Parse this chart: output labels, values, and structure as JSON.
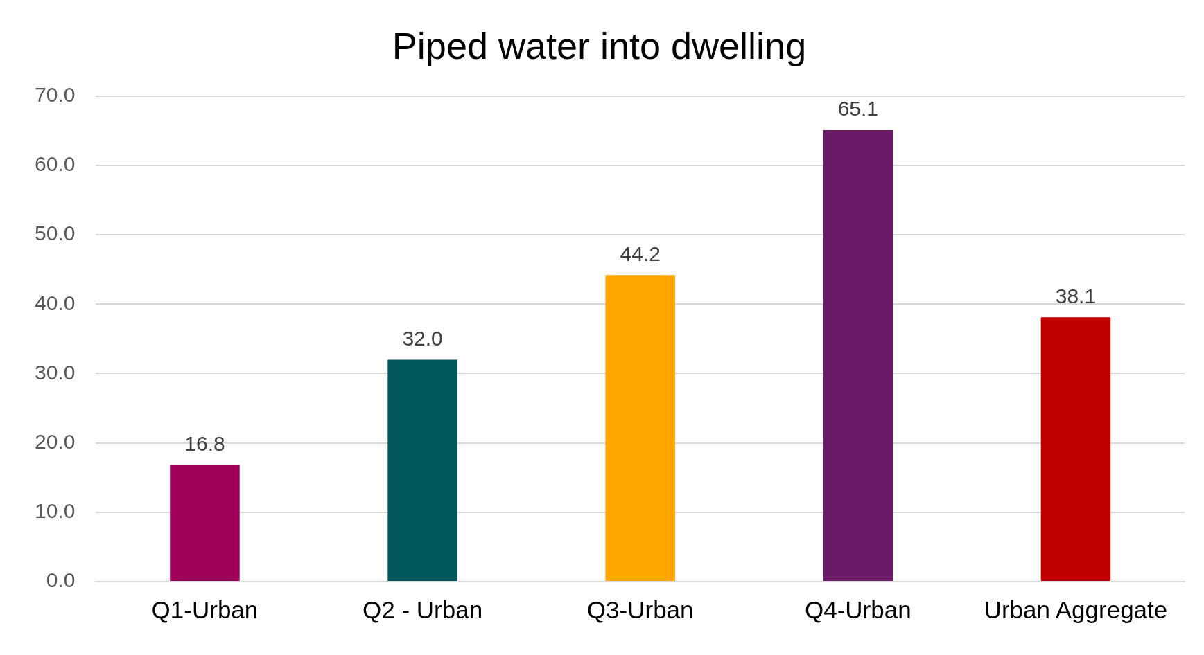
{
  "chart_data": {
    "type": "bar",
    "title": "Piped water into dwelling",
    "categories": [
      "Q1-Urban",
      "Q2 - Urban",
      "Q3-Urban",
      "Q4-Urban",
      "Urban Aggregate"
    ],
    "values": [
      16.8,
      32.0,
      44.2,
      65.1,
      38.1
    ],
    "value_labels": [
      "16.8",
      "32.0",
      "44.2",
      "65.1",
      "38.1"
    ],
    "colors": [
      "#a0005a",
      "#00585f",
      "#ffa500",
      "#6a1b68",
      "#c00000"
    ],
    "ylim": [
      0,
      70
    ],
    "yticks": [
      {
        "value": 0,
        "label": "0.0"
      },
      {
        "value": 10,
        "label": "10.0"
      },
      {
        "value": 20,
        "label": "20.0"
      },
      {
        "value": 30,
        "label": "30.0"
      },
      {
        "value": 40,
        "label": "40.0"
      },
      {
        "value": 50,
        "label": "50.0"
      },
      {
        "value": 60,
        "label": "60.0"
      },
      {
        "value": 70,
        "label": "70.0"
      }
    ],
    "grid": "y",
    "legend": false
  }
}
